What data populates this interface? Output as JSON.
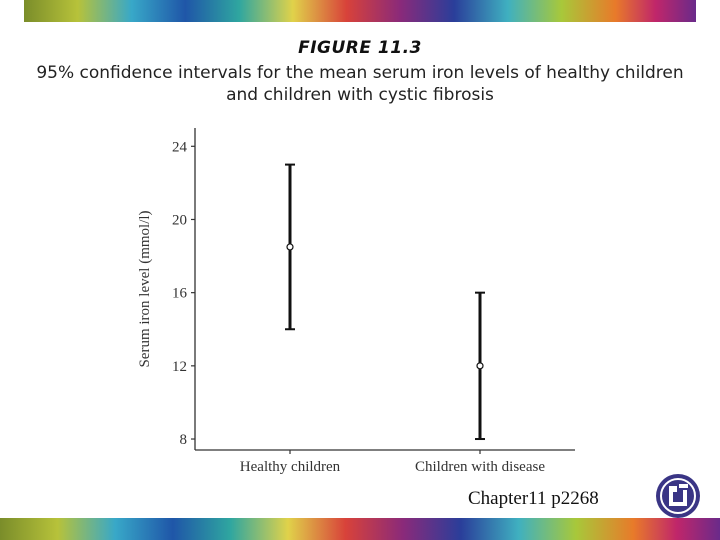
{
  "figure_label": "FIGURE 11.3",
  "title": "95% confidence intervals for the mean serum iron levels of healthy children and children with cystic fibrosis",
  "footer": "Chapter11 p2268",
  "chart_data": {
    "type": "errorbar",
    "ylabel": "Serum iron level (mmol/l)",
    "xlabel": "",
    "ylim": [
      7.4,
      25
    ],
    "yticks": [
      8,
      12,
      16,
      20,
      24
    ],
    "categories": [
      "Healthy children",
      "Children with disease"
    ],
    "means": [
      18.5,
      12
    ],
    "lower": [
      14,
      8
    ],
    "upper": [
      23,
      16
    ],
    "grid": false
  }
}
